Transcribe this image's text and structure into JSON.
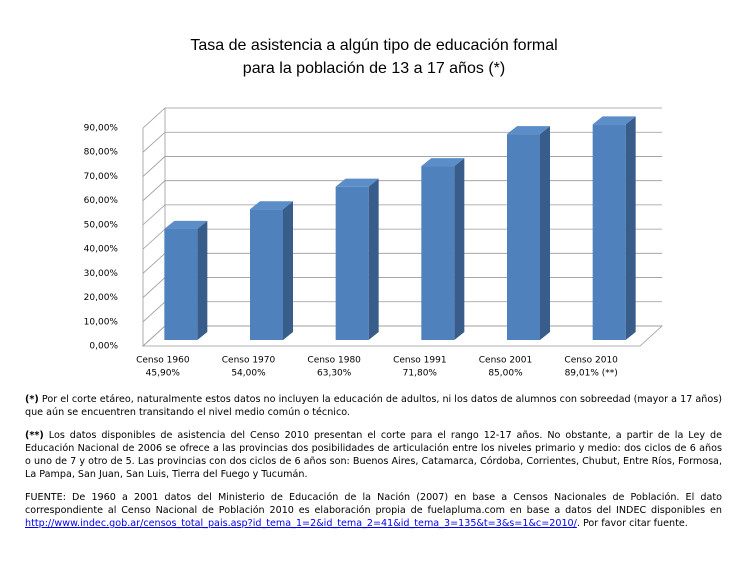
{
  "chart_data": {
    "type": "bar",
    "title": [
      "Tasa de asistencia a algún tipo de educación formal",
      "para la población de 13 a 17 años (*)"
    ],
    "categories": [
      "Censo 1960",
      "Censo 1970",
      "Censo 1980",
      "Censo 1991",
      "Censo 2001",
      "Censo 2010"
    ],
    "values": [
      45.9,
      54.0,
      63.3,
      71.8,
      85.0,
      89.01
    ],
    "value_labels": [
      "45,90%",
      "54,00%",
      "63,30%",
      "71,80%",
      "85,00%",
      "89,01% (**)"
    ],
    "color": "#4f81bd",
    "ylim": [
      0,
      90
    ],
    "yticks": [
      {
        "value": 0,
        "label": "0,00%"
      },
      {
        "value": 10,
        "label": "10,00%"
      },
      {
        "value": 20,
        "label": "20,00%"
      },
      {
        "value": 30,
        "label": "30,00%"
      },
      {
        "value": 40,
        "label": "40,00%"
      },
      {
        "value": 50,
        "label": "50,00%"
      },
      {
        "value": 60,
        "label": "60,00%"
      },
      {
        "value": 70,
        "label": "70,00%"
      },
      {
        "value": 80,
        "label": "80,00%"
      },
      {
        "value": 90,
        "label": "90,00%"
      }
    ],
    "grid": true
  },
  "notes": [
    {
      "marker": "(*)",
      "text": " Por el corte etáreo, naturalmente estos datos no incluyen la educación de adultos, ni los datos de alumnos con sobreedad (mayor a 17 años) que aún se encuentren transitando el nivel medio común o técnico."
    },
    {
      "marker": "(**)",
      "text": " Los datos disponibles de asistencia del Censo 2010 presentan el corte para el rango 12-17 años. No obstante, a partir de la Ley de Educación Nacional de 2006 se ofrece a las provincias dos posibilidades de articulación entre los niveles primario y medio: dos ciclos de 6 años o uno de 7 y otro de 5. Las provincias con dos ciclos de 6 años son: Buenos Aires, Catamarca, Córdoba, Corrientes, Chubut, Entre Ríos, Formosa, La Pampa, San Juan, San Luis, Tierra del Fuego y Tucumán."
    },
    {
      "text": "FUENTE: De 1960 a 2001 datos del Ministerio de Educación de la Nación (2007) en base a Censos Nacionales de Población. El dato correspondiente al Censo Nacional de Población 2010 es elaboración propia de fuelapluma.com en base a datos del INDEC disponibles en ",
      "link": "http://www.indec.gob.ar/censos_total_pais.asp?id_tema_1=2&id_tema_2=41&id_tema_3=135&t=3&s=1&c=2010/",
      "after": ". Por favor citar fuente."
    }
  ]
}
